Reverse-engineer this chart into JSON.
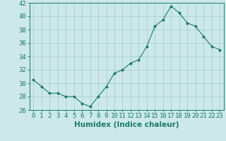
{
  "x": [
    0,
    1,
    2,
    3,
    4,
    5,
    6,
    7,
    8,
    9,
    10,
    11,
    12,
    13,
    14,
    15,
    16,
    17,
    18,
    19,
    20,
    21,
    22,
    23
  ],
  "y": [
    30.5,
    29.5,
    28.5,
    28.5,
    28.0,
    28.0,
    27.0,
    26.5,
    28.0,
    29.5,
    31.5,
    32.0,
    33.0,
    33.5,
    35.5,
    38.5,
    39.5,
    41.5,
    40.5,
    39.0,
    38.5,
    37.0,
    35.5,
    35.0
  ],
  "xlabel": "Humidex (Indice chaleur)",
  "xlim": [
    -0.5,
    23.5
  ],
  "ylim": [
    26,
    42
  ],
  "yticks": [
    26,
    28,
    30,
    32,
    34,
    36,
    38,
    40,
    42
  ],
  "xticks": [
    0,
    1,
    2,
    3,
    4,
    5,
    6,
    7,
    8,
    9,
    10,
    11,
    12,
    13,
    14,
    15,
    16,
    17,
    18,
    19,
    20,
    21,
    22,
    23
  ],
  "line_color": "#1a7a6e",
  "marker": "D",
  "marker_size": 2.0,
  "bg_color": "#cce8e8",
  "grid_color": "#aacfcf",
  "axis_color": "#1a7a6e",
  "tick_label_color": "#1a7a6e",
  "xlabel_color": "#1a7a6e",
  "xlabel_fontsize": 7.5,
  "tick_fontsize": 6.5
}
